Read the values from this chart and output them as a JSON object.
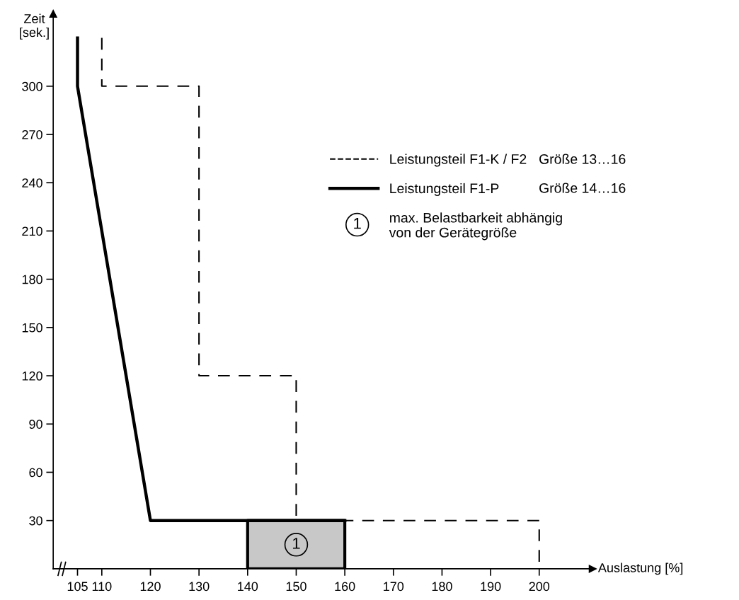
{
  "chart_data": {
    "type": "line",
    "xlabel": "Auslastung [%]",
    "ylabel": "Zeit\n[sek.]",
    "xlim": [
      100,
      211
    ],
    "ylim": [
      0,
      345
    ],
    "xticks": [
      105,
      110,
      120,
      130,
      140,
      150,
      160,
      170,
      180,
      190,
      200
    ],
    "yticks": [
      30,
      60,
      90,
      120,
      150,
      180,
      210,
      240,
      270,
      300
    ],
    "series": [
      {
        "name": "Leistungsteil F1-K / F2",
        "color": "#000000",
        "line_style": "dashed",
        "x": [
          110,
          110,
          130,
          130,
          150,
          150,
          200,
          200
        ],
        "values": [
          330,
          300,
          300,
          120,
          120,
          30,
          30,
          0
        ]
      },
      {
        "name": "Leistungsteil F1-P",
        "color": "#000000",
        "line_style": "solid",
        "x": [
          105,
          105,
          120,
          160
        ],
        "values": [
          330,
          300,
          30,
          30
        ]
      },
      {
        "type": "area",
        "color": "#c8c8c8",
        "x": [
          140,
          160
        ],
        "values": [
          30,
          30
        ]
      }
    ],
    "annotations": [
      {
        "text": "1",
        "x": 150,
        "y": 15
      },
      "Größe 13…16",
      "Größe 14…16",
      "max. Belastbarkeit abhängig\nvon der Gerätegröße"
    ],
    "legend": "right",
    "grid": false
  }
}
